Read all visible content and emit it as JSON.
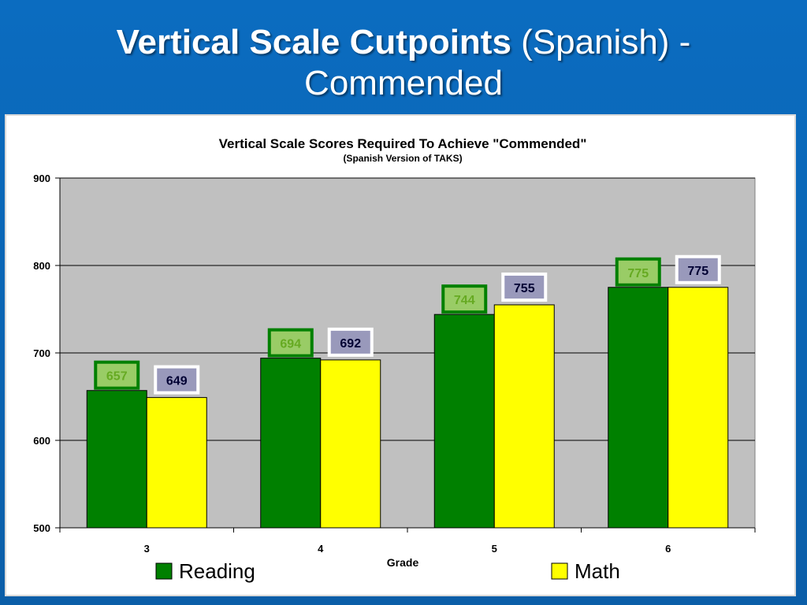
{
  "slide": {
    "title_bold": "Vertical Scale Cutpoints",
    "title_rest": " (Spanish) -",
    "title_line2": "Commended"
  },
  "chart_data": {
    "type": "bar",
    "title": "Vertical Scale Scores Required To Achieve \"Commended\"",
    "subtitle": "(Spanish Version of TAKS)",
    "xlabel": "Grade",
    "ylabel": "",
    "categories": [
      "3",
      "4",
      "5",
      "6"
    ],
    "ylim": [
      500,
      900
    ],
    "yticks": [
      500,
      600,
      700,
      800,
      900
    ],
    "grid": true,
    "legend_position": "bottom",
    "series": [
      {
        "name": "Reading",
        "values": [
          657,
          694,
          744,
          775
        ],
        "color": "#008000",
        "label_bg": "#99cc66",
        "label_border": "#008000",
        "label_color": "#66aa22"
      },
      {
        "name": "Math",
        "values": [
          649,
          692,
          755,
          775
        ],
        "color": "#ffff00",
        "label_bg": "#9999bb",
        "label_border": "#ffffff",
        "label_color": "#000033"
      }
    ],
    "plot_bg": "#c0c0c0"
  }
}
